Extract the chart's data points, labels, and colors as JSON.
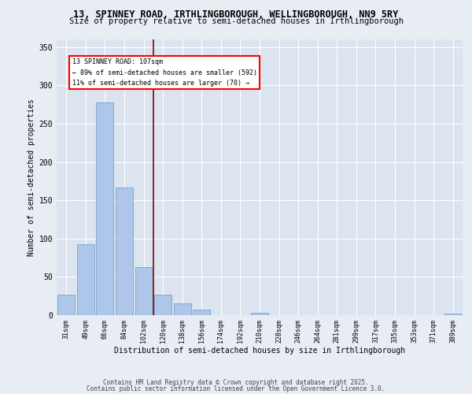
{
  "title_line1": "13, SPINNEY ROAD, IRTHLINGBOROUGH, WELLINGBOROUGH, NN9 5RY",
  "title_line2": "Size of property relative to semi-detached houses in Irthlingborough",
  "xlabel": "Distribution of semi-detached houses by size in Irthlingborough",
  "ylabel": "Number of semi-detached properties",
  "annotation_line1": "13 SPINNEY ROAD: 107sqm",
  "annotation_line2": "← 89% of semi-detached houses are smaller (592)",
  "annotation_line3": "11% of semi-detached houses are larger (70) →",
  "categories": [
    "31sqm",
    "49sqm",
    "66sqm",
    "84sqm",
    "102sqm",
    "120sqm",
    "138sqm",
    "156sqm",
    "174sqm",
    "192sqm",
    "210sqm",
    "228sqm",
    "246sqm",
    "264sqm",
    "281sqm",
    "299sqm",
    "317sqm",
    "335sqm",
    "353sqm",
    "371sqm",
    "389sqm"
  ],
  "values": [
    27,
    93,
    278,
    167,
    63,
    27,
    15,
    7,
    0,
    0,
    3,
    0,
    0,
    0,
    0,
    0,
    0,
    0,
    0,
    0,
    2
  ],
  "bar_color": "#aec6e8",
  "bar_edge_color": "#6699cc",
  "red_line_x": 4.5,
  "ylim": [
    0,
    360
  ],
  "yticks": [
    0,
    50,
    100,
    150,
    200,
    250,
    300,
    350
  ],
  "background_color": "#e8edf4",
  "plot_bg_color": "#dce4f0",
  "footer_line1": "Contains HM Land Registry data © Crown copyright and database right 2025.",
  "footer_line2": "Contains public sector information licensed under the Open Government Licence 3.0."
}
